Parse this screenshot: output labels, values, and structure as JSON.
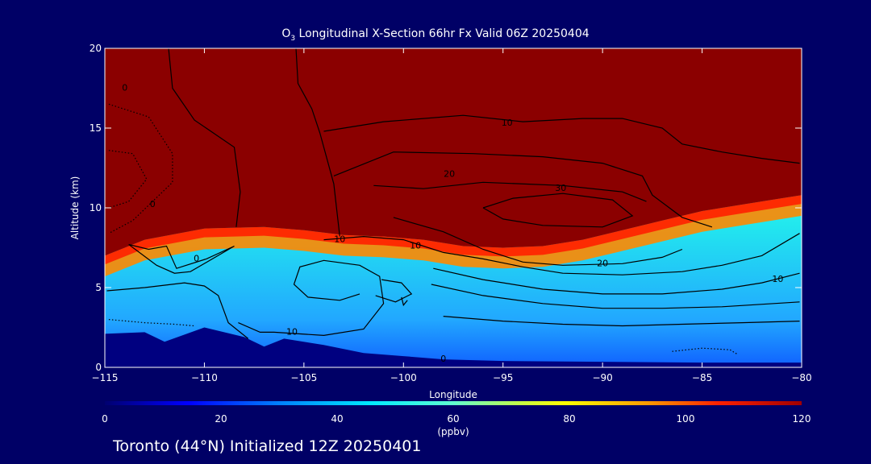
{
  "title": {
    "species": "O",
    "subscript": "3",
    "rest": " Longitudinal X-Section 66hr  Fx Valid 06Z 20250404"
  },
  "footer_text": "Toronto (44°N) Initialized 12Z 20250401",
  "colors": {
    "background": "#000066",
    "terrain": "#000080",
    "stratosphere": "#8b0000"
  },
  "chart_data": {
    "type": "heatmap",
    "title": "O3 Longitudinal X-Section 66hr  Fx Valid 06Z 20250404",
    "xlabel": "Longitude",
    "ylabel": "Altitude (km)",
    "xlim": [
      -115,
      -80
    ],
    "ylim": [
      0,
      20
    ],
    "x_ticks": [
      -115,
      -110,
      -105,
      -100,
      -95,
      -90,
      -85,
      -80
    ],
    "x_tick_labels": [
      "−115",
      "−110",
      "−105",
      "−100",
      "−95",
      "−90",
      "−85",
      "−80"
    ],
    "y_ticks": [
      0,
      5,
      10,
      15,
      20
    ],
    "colorbar": {
      "label": "(ppbv)",
      "range": [
        0,
        120
      ],
      "ticks": [
        0,
        20,
        40,
        60,
        80,
        100,
        120
      ]
    },
    "tropopause_height_km": [
      [
        -115,
        7.0
      ],
      [
        -113,
        8.0
      ],
      [
        -110,
        8.7
      ],
      [
        -107,
        8.8
      ],
      [
        -105,
        8.6
      ],
      [
        -103,
        8.3
      ],
      [
        -101,
        8.2
      ],
      [
        -99,
        8.0
      ],
      [
        -97,
        7.6
      ],
      [
        -95,
        7.5
      ],
      [
        -93,
        7.6
      ],
      [
        -91,
        8.0
      ],
      [
        -89,
        8.6
      ],
      [
        -87,
        9.2
      ],
      [
        -85,
        9.8
      ],
      [
        -83,
        10.2
      ],
      [
        -81,
        10.6
      ],
      [
        -80,
        10.8
      ]
    ],
    "terrain_height_km": [
      [
        -115,
        2.1
      ],
      [
        -113,
        2.2
      ],
      [
        -112,
        1.6
      ],
      [
        -110,
        2.5
      ],
      [
        -108,
        1.9
      ],
      [
        -107,
        1.3
      ],
      [
        -106,
        1.8
      ],
      [
        -104,
        1.4
      ],
      [
        -102,
        0.9
      ],
      [
        -100,
        0.7
      ],
      [
        -98,
        0.5
      ],
      [
        -95,
        0.4
      ],
      [
        -90,
        0.35
      ],
      [
        -85,
        0.3
      ],
      [
        -80,
        0.3
      ]
    ],
    "contour_labels": [
      {
        "text": "0",
        "x": -110.4,
        "y": 6.8
      },
      {
        "text": "10",
        "x": -103.2,
        "y": 8.0
      },
      {
        "text": "10",
        "x": -99.4,
        "y": 7.6
      },
      {
        "text": "10",
        "x": -105.6,
        "y": 2.2
      },
      {
        "text": "0",
        "x": -98.0,
        "y": 0.5
      },
      {
        "text": "10",
        "x": -94.8,
        "y": 15.3
      },
      {
        "text": "20",
        "x": -97.7,
        "y": 12.1
      },
      {
        "text": "30",
        "x": -92.1,
        "y": 11.2
      },
      {
        "text": "20",
        "x": -90.0,
        "y": 6.5
      },
      {
        "text": "10",
        "x": -81.2,
        "y": 5.5
      },
      {
        "text": "0",
        "x": -114.0,
        "y": 17.5
      },
      {
        "text": "0",
        "x": -112.6,
        "y": 10.2
      }
    ],
    "contours": [
      {
        "style": "solid",
        "points": [
          [
            -111.8,
            20
          ],
          [
            -111.6,
            17.5
          ],
          [
            -110.5,
            15.5
          ],
          [
            -108.5,
            13.8
          ],
          [
            -108.2,
            11
          ],
          [
            -108.4,
            8.8
          ]
        ]
      },
      {
        "style": "solid",
        "points": [
          [
            -105.4,
            20
          ],
          [
            -105.3,
            17.8
          ],
          [
            -104.6,
            16.2
          ],
          [
            -104.2,
            14.7
          ],
          [
            -103.5,
            11.5
          ],
          [
            -103.2,
            8.2
          ]
        ]
      },
      {
        "style": "solid",
        "points": [
          [
            -104,
            8.0
          ],
          [
            -102,
            8.2
          ],
          [
            -100,
            8.0
          ],
          [
            -99,
            7.6
          ],
          [
            -98,
            7.2
          ],
          [
            -96,
            6.8
          ],
          [
            -94,
            6.3
          ],
          [
            -92,
            5.9
          ],
          [
            -89,
            5.8
          ],
          [
            -86,
            6.0
          ],
          [
            -84,
            6.4
          ],
          [
            -82,
            7.0
          ],
          [
            -80.1,
            8.4
          ]
        ]
      },
      {
        "style": "solid",
        "points": [
          [
            -104,
            14.8
          ],
          [
            -101,
            15.4
          ],
          [
            -97,
            15.8
          ],
          [
            -94,
            15.4
          ],
          [
            -91,
            15.6
          ],
          [
            -89,
            15.6
          ],
          [
            -87,
            15.0
          ],
          [
            -86,
            14.0
          ],
          [
            -84,
            13.5
          ],
          [
            -82,
            13.1
          ],
          [
            -80.1,
            12.8
          ]
        ]
      },
      {
        "style": "solid",
        "points": [
          [
            -103.5,
            12
          ],
          [
            -100.5,
            13.5
          ],
          [
            -96.5,
            13.4
          ],
          [
            -93,
            13.2
          ],
          [
            -90,
            12.8
          ],
          [
            -88,
            12.0
          ],
          [
            -87.5,
            10.8
          ],
          [
            -86,
            9.4
          ],
          [
            -84.5,
            8.8
          ]
        ]
      },
      {
        "style": "solid",
        "points": [
          [
            -101.5,
            11.4
          ],
          [
            -99,
            11.2
          ],
          [
            -96,
            11.6
          ],
          [
            -92,
            11.4
          ],
          [
            -89,
            11.0
          ],
          [
            -87.8,
            10.4
          ]
        ]
      },
      {
        "style": "solid",
        "points": [
          [
            -96,
            10.0
          ],
          [
            -94.5,
            10.6
          ],
          [
            -92,
            10.9
          ],
          [
            -89.5,
            10.5
          ],
          [
            -88.5,
            9.5
          ],
          [
            -90,
            8.8
          ],
          [
            -93,
            8.9
          ],
          [
            -95,
            9.3
          ],
          [
            -96,
            10.0
          ]
        ]
      },
      {
        "style": "solid",
        "points": [
          [
            -100.5,
            9.4
          ],
          [
            -98,
            8.5
          ],
          [
            -96,
            7.4
          ],
          [
            -94,
            6.6
          ],
          [
            -92,
            6.4
          ],
          [
            -89,
            6.5
          ],
          [
            -87,
            6.9
          ],
          [
            -86,
            7.4
          ]
        ]
      },
      {
        "style": "solid",
        "points": [
          [
            -98.5,
            6.2
          ],
          [
            -96,
            5.5
          ],
          [
            -93,
            4.9
          ],
          [
            -90,
            4.6
          ],
          [
            -87,
            4.6
          ],
          [
            -84,
            4.9
          ],
          [
            -82,
            5.3
          ],
          [
            -80.1,
            5.9
          ]
        ]
      },
      {
        "style": "solid",
        "points": [
          [
            -98.6,
            5.2
          ],
          [
            -96,
            4.5
          ],
          [
            -93,
            4.0
          ],
          [
            -90,
            3.7
          ],
          [
            -87,
            3.7
          ],
          [
            -84,
            3.8
          ],
          [
            -80.1,
            4.1
          ]
        ]
      },
      {
        "style": "solid",
        "points": [
          [
            -98,
            3.2
          ],
          [
            -95,
            2.9
          ],
          [
            -92,
            2.7
          ],
          [
            -89,
            2.6
          ],
          [
            -86,
            2.7
          ],
          [
            -83,
            2.8
          ],
          [
            -80.1,
            2.9
          ]
        ]
      },
      {
        "style": "solid",
        "points": [
          [
            -108.3,
            2.8
          ],
          [
            -107.2,
            2.2
          ],
          [
            -106.5,
            2.2
          ],
          [
            -104,
            2.0
          ],
          [
            -102,
            2.4
          ],
          [
            -101,
            4.0
          ],
          [
            -101.2,
            5.7
          ],
          [
            -102.2,
            6.4
          ],
          [
            -104,
            6.7
          ],
          [
            -105.2,
            6.3
          ],
          [
            -105.5,
            5.2
          ],
          [
            -104.8,
            4.4
          ],
          [
            -103.2,
            4.2
          ],
          [
            -102.2,
            4.6
          ]
        ]
      },
      {
        "style": "solid",
        "points": [
          [
            -113.8,
            7.7
          ],
          [
            -112.8,
            7.4
          ],
          [
            -111.9,
            7.6
          ],
          [
            -111.4,
            6.2
          ],
          [
            -109.9,
            6.8
          ],
          [
            -108.5,
            7.6
          ],
          [
            -110.7,
            6.0
          ],
          [
            -111.5,
            5.9
          ],
          [
            -112.4,
            6.4
          ],
          [
            -113.8,
            7.7
          ]
        ]
      },
      {
        "style": "solid",
        "points": [
          [
            -114.9,
            4.8
          ],
          [
            -113,
            5.0
          ],
          [
            -111,
            5.3
          ],
          [
            -110,
            5.1
          ],
          [
            -109.3,
            4.5
          ],
          [
            -108.8,
            2.8
          ],
          [
            -107.8,
            1.8
          ]
        ]
      },
      {
        "style": "solid",
        "points": [
          [
            -101.4,
            4.5
          ],
          [
            -100.4,
            4.1
          ],
          [
            -99.6,
            4.6
          ],
          [
            -100.1,
            5.3
          ],
          [
            -101.1,
            5.5
          ]
        ]
      },
      {
        "style": "solid",
        "points": [
          [
            -100.1,
            4.4
          ],
          [
            -100.0,
            3.9
          ],
          [
            -99.8,
            4.2
          ]
        ]
      },
      {
        "style": "dotted",
        "points": [
          [
            -114.8,
            16.5
          ],
          [
            -112.8,
            15.7
          ],
          [
            -111.6,
            13.4
          ],
          [
            -111.6,
            11.6
          ],
          [
            -113.6,
            9.2
          ],
          [
            -114.8,
            8.4
          ]
        ]
      },
      {
        "style": "dotted",
        "points": [
          [
            -114.8,
            13.6
          ],
          [
            -113.6,
            13.4
          ],
          [
            -112.9,
            11.8
          ],
          [
            -113.8,
            10.4
          ],
          [
            -114.8,
            10.0
          ]
        ]
      },
      {
        "style": "dotted",
        "points": [
          [
            -114.8,
            3.0
          ],
          [
            -113,
            2.8
          ],
          [
            -111.5,
            2.7
          ],
          [
            -110.5,
            2.6
          ]
        ]
      },
      {
        "style": "dotted",
        "points": [
          [
            -86.5,
            1.0
          ],
          [
            -85,
            1.2
          ],
          [
            -83.6,
            1.1
          ],
          [
            -83.2,
            0.8
          ]
        ]
      }
    ]
  }
}
